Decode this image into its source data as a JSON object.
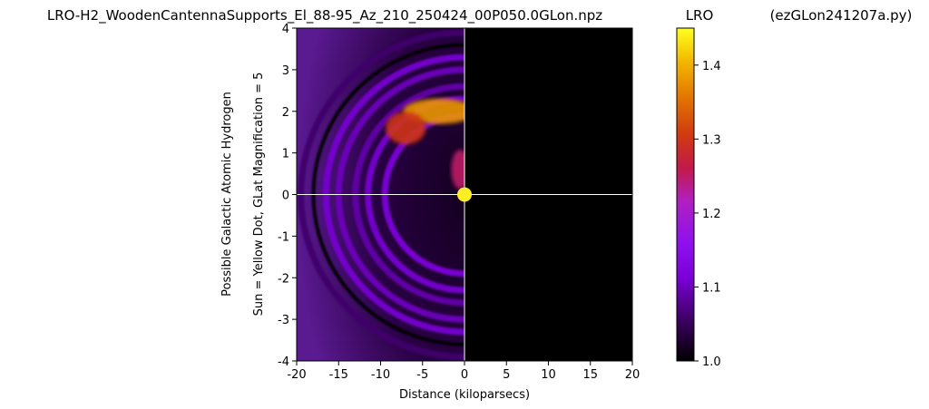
{
  "chart_data": {
    "type": "heatmap",
    "title": "LRO-H2_WoodenCantennaSupports_El_88-95_Az_210_250424_00P050.0GLon.npz",
    "colorbar_title": "LRO",
    "script_name": "(ezGLon241207a.py)",
    "xlabel": "Distance (kiloparsecs)",
    "ylabel_lines": [
      "Possible Galactic Atomic Hydrogen",
      "Sun = Yellow Dot, GLat Magnification = 5"
    ],
    "xlim": [
      -20,
      20
    ],
    "ylim": [
      -4,
      4
    ],
    "xticks": [
      -20,
      -15,
      -10,
      -5,
      0,
      5,
      10,
      15,
      20
    ],
    "xtick_labels": [
      "-20",
      "-15",
      "-10",
      "-5",
      "0",
      "5",
      "10",
      "15",
      "20"
    ],
    "yticks": [
      4,
      3,
      2,
      1,
      0,
      -1,
      -2,
      -3,
      -4
    ],
    "ytick_labels": [
      "4",
      "3",
      "2",
      "1",
      "0",
      "-1",
      "-2",
      "-3",
      "-4"
    ],
    "colorbar": {
      "colormap": "gnuplot",
      "range": [
        1.0,
        1.45
      ],
      "ticks": [
        1.0,
        1.1,
        1.2,
        1.3,
        1.4
      ],
      "tick_labels": [
        "1.0",
        "1.1",
        "1.2",
        "1.3",
        "1.4"
      ]
    },
    "sun": {
      "x": 0,
      "y": 0,
      "color": "#ffee22"
    },
    "crosshair": {
      "x": 0,
      "y": 0,
      "color": "#ffffff"
    },
    "arcs": [
      {
        "radius_kpc": 19.5,
        "value": 1.06
      },
      {
        "radius_kpc": 18.0,
        "value": 1.0
      },
      {
        "radius_kpc": 16.5,
        "value": 1.11
      },
      {
        "radius_kpc": 15.0,
        "value": 1.1
      },
      {
        "radius_kpc": 13.0,
        "value": 1.09
      },
      {
        "radius_kpc": 11.5,
        "value": 1.11
      },
      {
        "radius_kpc": 9.5,
        "value": 1.12
      }
    ],
    "hot_features": [
      {
        "description_value": 1.38,
        "x": -3,
        "y": 2.0
      },
      {
        "description_value": 1.3,
        "x": -7,
        "y": 1.6
      },
      {
        "description_value": 1.25,
        "x": -0.5,
        "y": 0.6
      }
    ],
    "right_half_value": 1.0
  }
}
